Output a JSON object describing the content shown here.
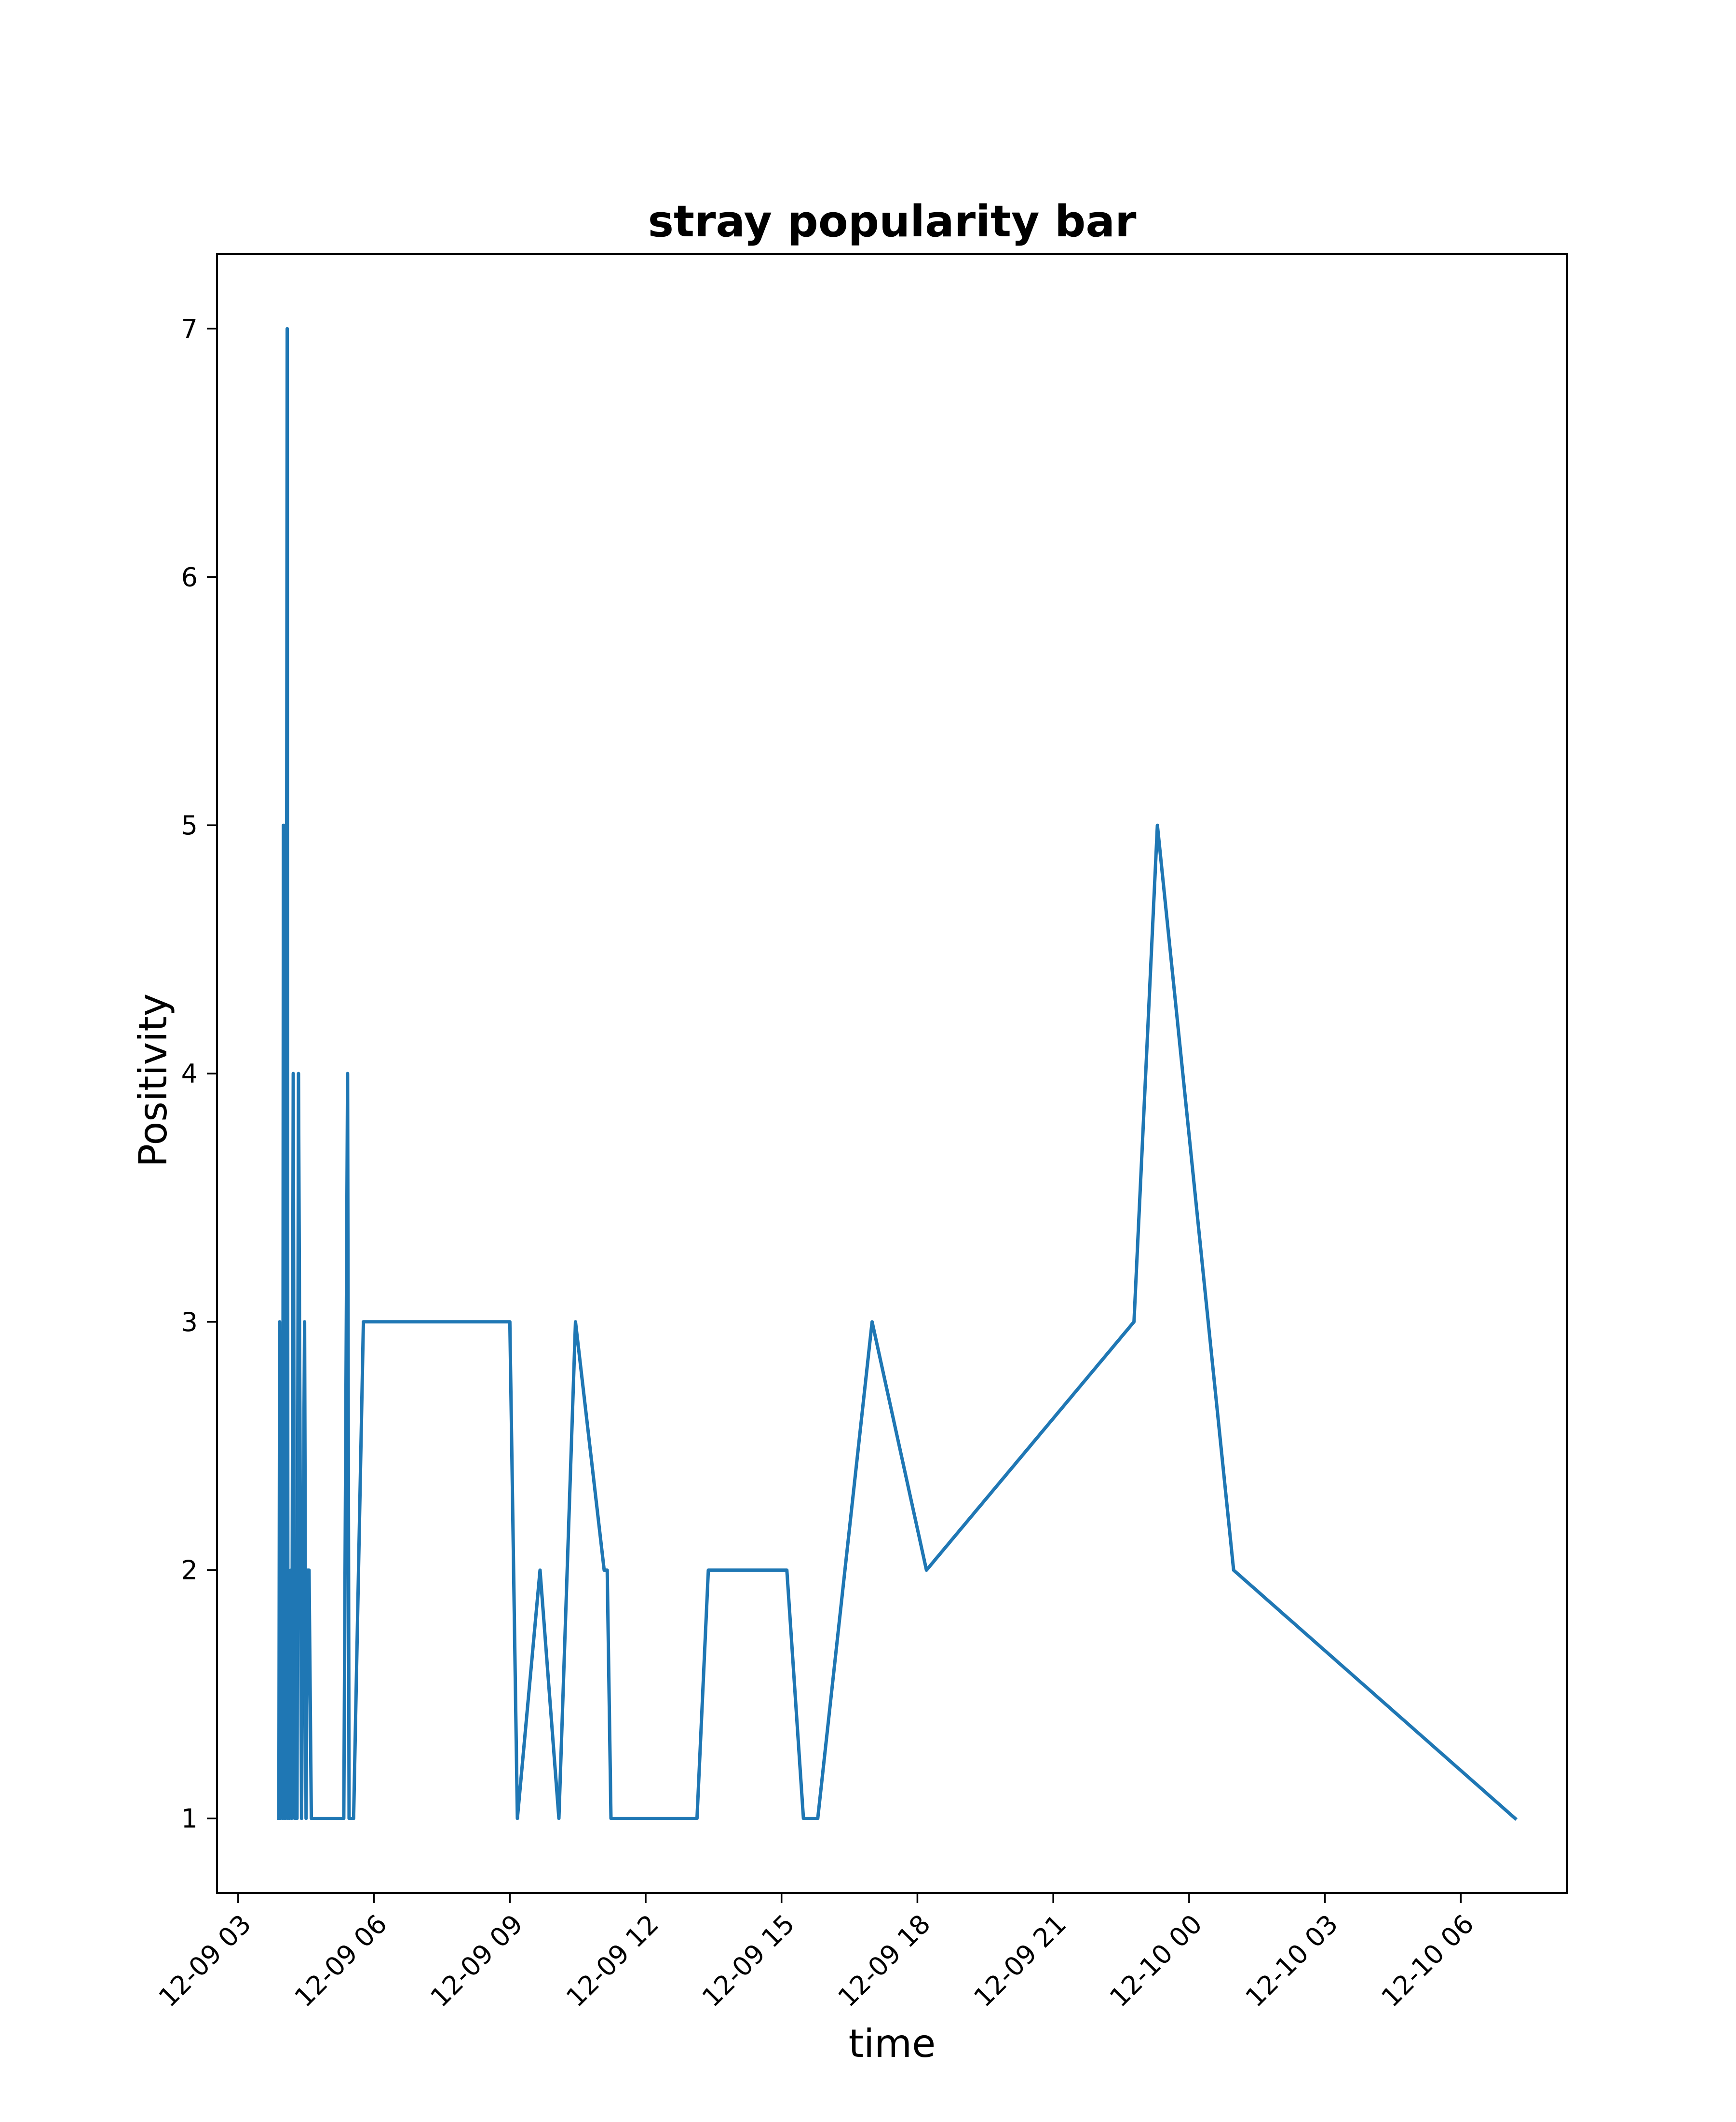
{
  "chart_data": {
    "type": "line",
    "title": "stray popularity bar",
    "xlabel": "time",
    "ylabel": "Positivity",
    "x_tick_labels": [
      "12-09 03",
      "12-09 06",
      "12-09 09",
      "12-09 12",
      "12-09 15",
      "12-09 18",
      "12-09 21",
      "12-10 00",
      "12-10 03",
      "12-10 06"
    ],
    "y_tick_labels": [
      "1",
      "2",
      "3",
      "4",
      "5",
      "6",
      "7"
    ],
    "x_tick_times": [
      "2023-12-09 03:00",
      "2023-12-09 06:00",
      "2023-12-09 09:00",
      "2023-12-09 12:00",
      "2023-12-09 15:00",
      "2023-12-09 18:00",
      "2023-12-09 21:00",
      "2023-12-10 00:00",
      "2023-12-10 03:00",
      "2023-12-10 06:00"
    ],
    "y_ticks": [
      1,
      2,
      3,
      4,
      5,
      6,
      7
    ],
    "xlim": [
      "2023-12-09 02:32",
      "2023-12-10 08:21"
    ],
    "ylim": [
      0.7,
      7.3
    ],
    "grid": false,
    "color": "#1f77b4",
    "series": [
      {
        "x": [
          "2023-12-09 03:54",
          "2023-12-09 03:55",
          "2023-12-09 03:56",
          "2023-12-09 03:57",
          "2023-12-09 03:59",
          "2023-12-09 04:00",
          "2023-12-09 04:01",
          "2023-12-09 04:02",
          "2023-12-09 04:03",
          "2023-12-09 04:05",
          "2023-12-09 04:06",
          "2023-12-09 04:07",
          "2023-12-09 04:08",
          "2023-12-09 04:10",
          "2023-12-09 04:11",
          "2023-12-09 04:13",
          "2023-12-09 04:15",
          "2023-12-09 04:18",
          "2023-12-09 04:20",
          "2023-12-09 04:24",
          "2023-12-09 04:28",
          "2023-12-09 04:30",
          "2023-12-09 04:32",
          "2023-12-09 04:34",
          "2023-12-09 04:37",
          "2023-12-09 04:39",
          "2023-12-09 04:42",
          "2023-12-09 04:45",
          "2023-12-09 04:52",
          "2023-12-09 05:20",
          "2023-12-09 05:25",
          "2023-12-09 05:27",
          "2023-12-09 05:30",
          "2023-12-09 05:33",
          "2023-12-09 05:46",
          "2023-12-09 09:00",
          "2023-12-09 09:10",
          "2023-12-09 09:40",
          "2023-12-09 10:05",
          "2023-12-09 10:27",
          "2023-12-09 11:05",
          "2023-12-09 11:09",
          "2023-12-09 11:14",
          "2023-12-09 13:08",
          "2023-12-09 13:23",
          "2023-12-09 15:07",
          "2023-12-09 15:29",
          "2023-12-09 15:48",
          "2023-12-09 17:00",
          "2023-12-09 18:12",
          "2023-12-09 22:47",
          "2023-12-09 23:18",
          "2023-12-10 00:59",
          "2023-12-10 07:12"
        ],
        "y": [
          1,
          3,
          1,
          2,
          1,
          5,
          1,
          5,
          1,
          7,
          1,
          2,
          1,
          2,
          1,
          4,
          1,
          1,
          4,
          1,
          3,
          1,
          2,
          2,
          1,
          1,
          1,
          1,
          1,
          1,
          4,
          1,
          1,
          1,
          3,
          3,
          1,
          2,
          1,
          3,
          2,
          2,
          1,
          1,
          2,
          2,
          1,
          1,
          3,
          2,
          3,
          5,
          2,
          1
        ]
      }
    ]
  }
}
